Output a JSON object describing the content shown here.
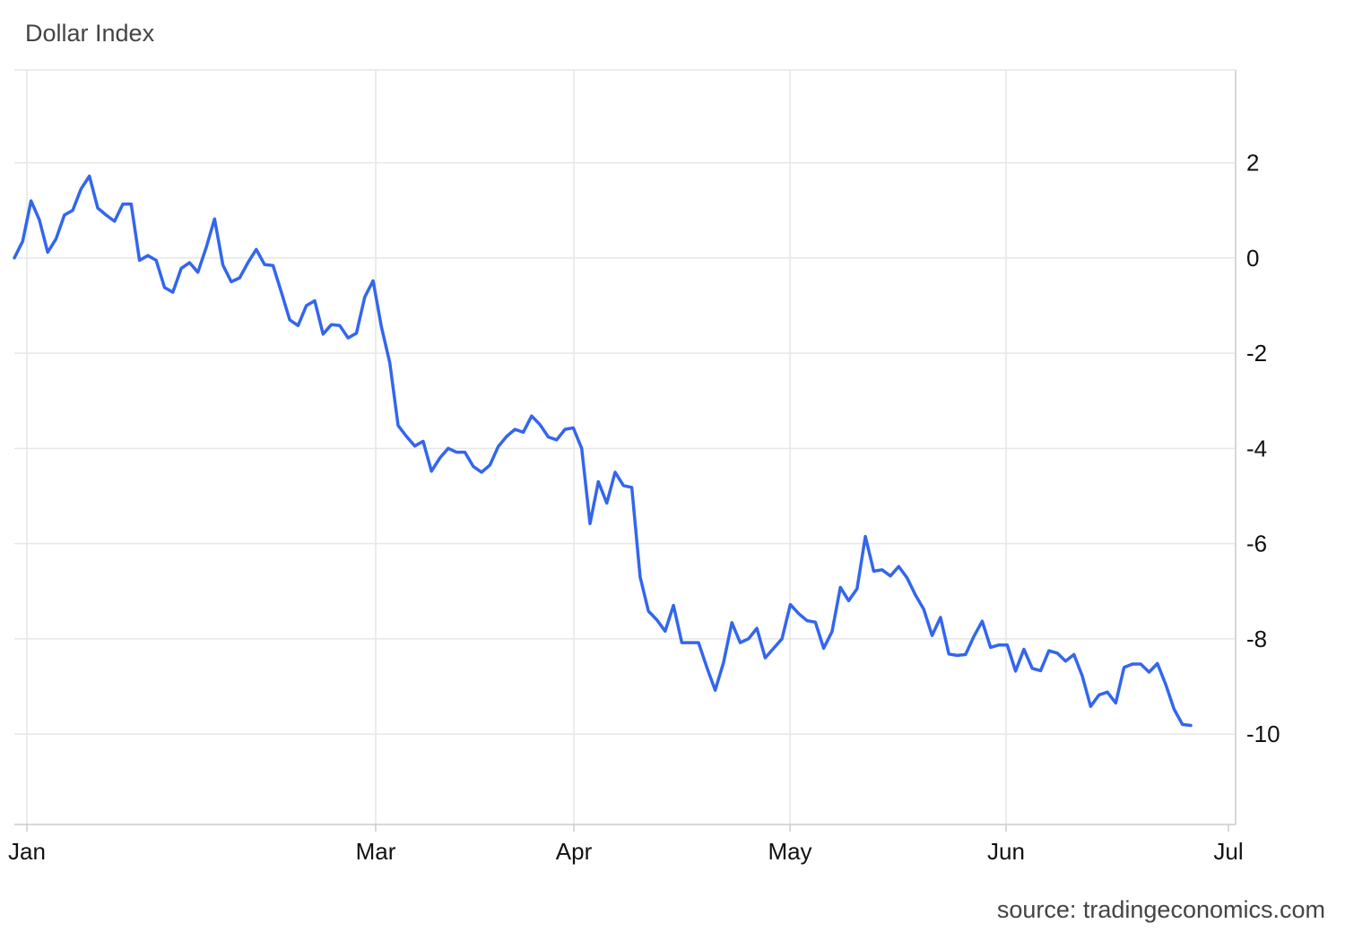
{
  "title": "Dollar Index",
  "source": "source: tradingeconomics.com",
  "chart_data": {
    "type": "line",
    "title": "Dollar Index",
    "ylabel": "",
    "xlabel": "",
    "y_ticks": [
      "2",
      "0",
      "-2",
      "-4",
      "-6",
      "-8",
      "-10"
    ],
    "y_tick_values": [
      2,
      0,
      -2,
      -4,
      -6,
      -8,
      -10
    ],
    "x_ticks": [
      "Jan",
      "Mar",
      "Apr",
      "May",
      "Jun",
      "Jul"
    ],
    "ylim": [
      -11.9,
      3.95
    ],
    "grid": true,
    "line_color": "#3366ee",
    "series": [
      {
        "values": [
          0.0,
          0.35,
          1.2,
          0.8,
          0.12,
          0.4,
          0.9,
          1.0,
          1.45,
          1.72,
          1.05,
          0.9,
          0.77,
          1.13,
          1.13,
          -0.05,
          0.05,
          -0.05,
          -0.62,
          -0.72,
          -0.22,
          -0.1,
          -0.3,
          0.22,
          0.82,
          -0.15,
          -0.5,
          -0.42,
          -0.1,
          0.18,
          -0.14,
          -0.16,
          -0.72,
          -1.3,
          -1.42,
          -1.0,
          -0.9,
          -1.6,
          -1.4,
          -1.42,
          -1.68,
          -1.58,
          -0.82,
          -0.48,
          -1.45,
          -2.2,
          -3.52,
          -3.75,
          -3.95,
          -3.85,
          -4.48,
          -4.2,
          -4.0,
          -4.08,
          -4.08,
          -4.38,
          -4.5,
          -4.35,
          -3.96,
          -3.75,
          -3.6,
          -3.66,
          -3.32,
          -3.5,
          -3.76,
          -3.82,
          -3.6,
          -3.57,
          -4.0,
          -5.58,
          -4.7,
          -5.15,
          -4.5,
          -4.78,
          -4.82,
          -6.7,
          -7.42,
          -7.6,
          -7.84,
          -7.3,
          -8.08,
          -8.08,
          -8.08,
          -8.6,
          -9.08,
          -8.5,
          -7.66,
          -8.08,
          -8.0,
          -7.78,
          -8.4,
          -8.2,
          -8.0,
          -7.28,
          -7.47,
          -7.62,
          -7.65,
          -8.2,
          -7.85,
          -6.92,
          -7.2,
          -6.95,
          -5.85,
          -6.58,
          -6.55,
          -6.68,
          -6.48,
          -6.72,
          -7.08,
          -7.38,
          -7.93,
          -7.55,
          -8.32,
          -8.35,
          -8.33,
          -7.95,
          -7.63,
          -8.18,
          -8.13,
          -8.13,
          -8.68,
          -8.22,
          -8.62,
          -8.67,
          -8.25,
          -8.3,
          -8.47,
          -8.33,
          -8.78,
          -9.42,
          -9.18,
          -9.12,
          -9.35,
          -8.6,
          -8.53,
          -8.53,
          -8.7,
          -8.52,
          -8.96,
          -9.48,
          -9.8,
          -9.82
        ]
      }
    ]
  }
}
